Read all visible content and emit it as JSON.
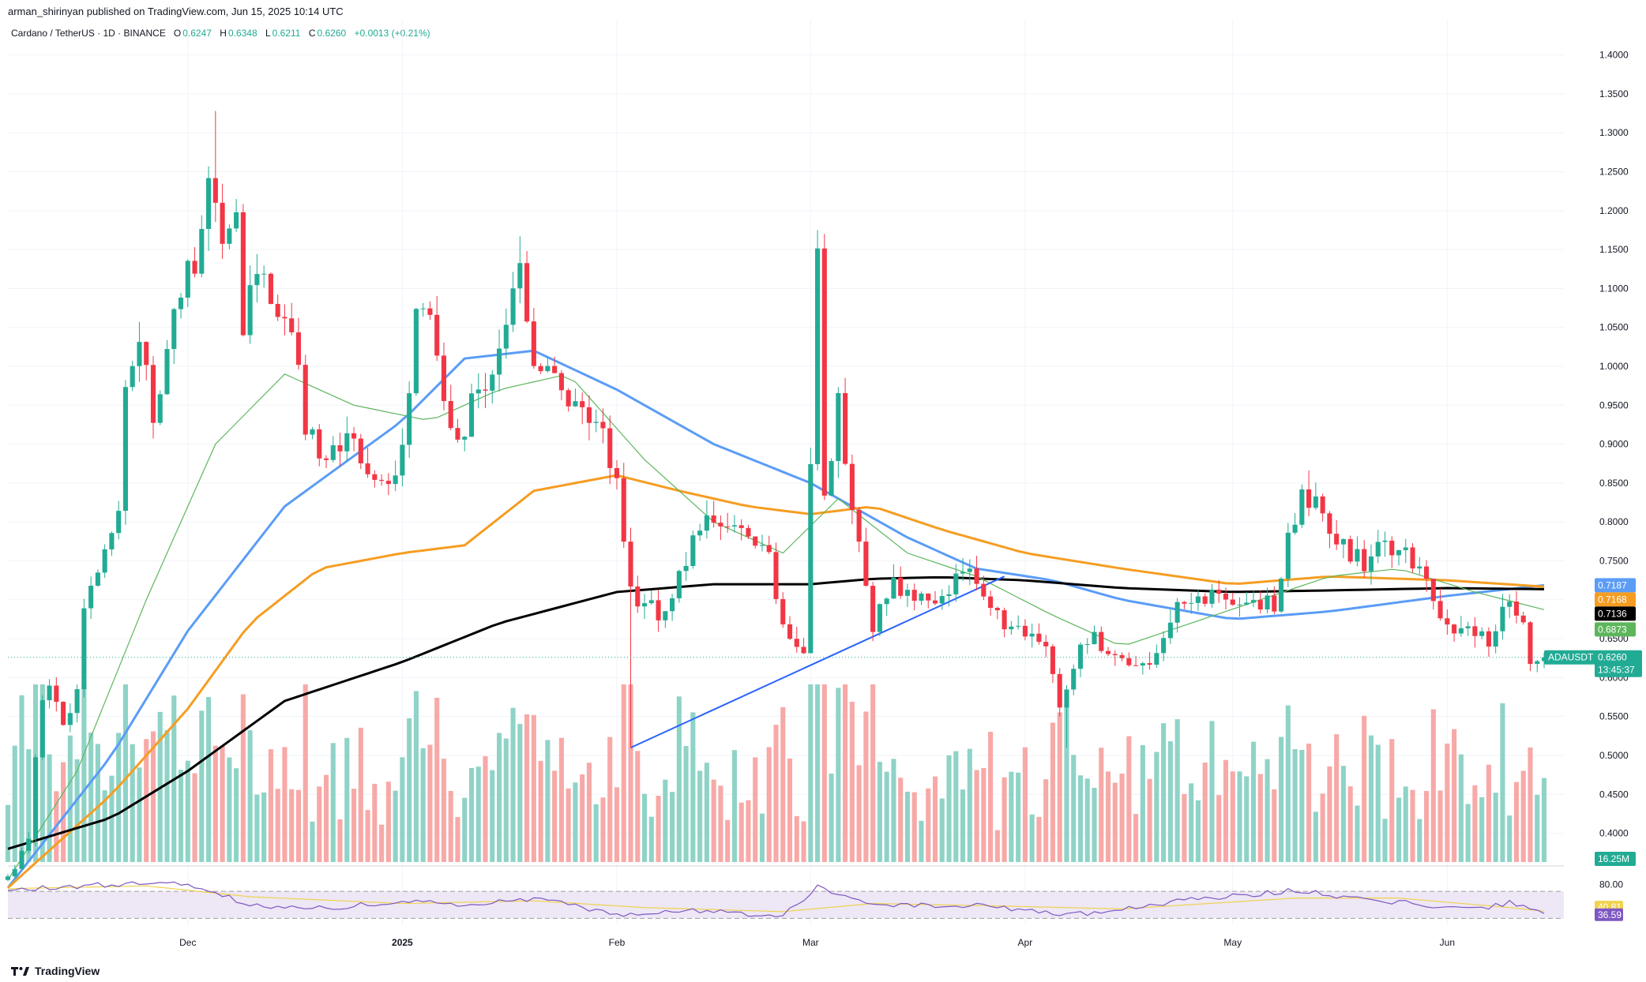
{
  "header": {
    "published": "arman_shirinyan published on TradingView.com, Jun 15, 2025 10:14 UTC",
    "symbol": "Cardano / TetherUS · 1D · BINANCE",
    "ohlc": {
      "o_label": "O",
      "o": "0.6247",
      "h_label": "H",
      "h": "0.6348",
      "l_label": "L",
      "l": "0.6211",
      "c_label": "C",
      "c": "0.6260",
      "change": "+0.0013 (+0.21%)"
    }
  },
  "brand": {
    "name": "TradingView"
  },
  "colors": {
    "up": "#22ab94",
    "down": "#f23645",
    "vol_up": "#8fd3c7",
    "vol_down": "#f7a9a7",
    "ma_fast": "#5b9cf6",
    "ma_mid": "#f59d22",
    "ma_slow": "#000000",
    "ma_thin": "#5db65c",
    "trendline": "#2962ff",
    "rsi": "#7e57c2",
    "rsi_ma": "#f0d24d",
    "rsi_band": "#ede7f6"
  },
  "chart_data": {
    "type": "candlestick",
    "title": "Cardano / TetherUS · 1D · BINANCE",
    "y_axis": {
      "range": [
        0.36,
        1.425
      ],
      "ticks": [
        "1.4000",
        "1.3500",
        "1.3000",
        "1.2500",
        "1.2000",
        "1.1500",
        "1.1000",
        "1.0500",
        "1.0000",
        "0.9500",
        "0.9000",
        "0.8500",
        "0.8000",
        "0.7500",
        "0.7000",
        "0.6500",
        "0.6000",
        "0.5500",
        "0.5000",
        "0.4500",
        "0.4000"
      ]
    },
    "x_axis": {
      "start": "2024-11-05",
      "end": "2025-06-15",
      "ticks": [
        {
          "label": "Dec",
          "date": "2024-12-01"
        },
        {
          "label": "2025",
          "date": "2025-01-01"
        },
        {
          "label": "Feb",
          "date": "2025-02-01"
        },
        {
          "label": "Mar",
          "date": "2025-03-01"
        },
        {
          "label": "Apr",
          "date": "2025-04-01"
        },
        {
          "label": "May",
          "date": "2025-05-01"
        },
        {
          "label": "Jun",
          "date": "2025-06-01"
        }
      ]
    },
    "close_path": [
      [
        "2024-11-05",
        0.34
      ],
      [
        "2024-11-08",
        0.4
      ],
      [
        "2024-11-10",
        0.58
      ],
      [
        "2024-11-11",
        0.59
      ],
      [
        "2024-11-13",
        0.55
      ],
      [
        "2024-11-15",
        0.58
      ],
      [
        "2024-11-16",
        0.68
      ],
      [
        "2024-11-19",
        0.76
      ],
      [
        "2024-11-21",
        0.8
      ],
      [
        "2024-11-22",
        0.97
      ],
      [
        "2024-11-24",
        1.05
      ],
      [
        "2024-11-26",
        0.94
      ],
      [
        "2024-11-28",
        1.02
      ],
      [
        "2024-11-30",
        1.1
      ],
      [
        "2024-12-02",
        1.14
      ],
      [
        "2024-12-03",
        1.2
      ],
      [
        "2024-12-04",
        1.23
      ],
      [
        "2024-12-06",
        1.18
      ],
      [
        "2024-12-08",
        1.22
      ],
      [
        "2024-12-09",
        1.05
      ],
      [
        "2024-12-11",
        1.13
      ],
      [
        "2024-12-13",
        1.09
      ],
      [
        "2024-12-16",
        1.05
      ],
      [
        "2024-12-18",
        0.93
      ],
      [
        "2024-12-20",
        0.88
      ],
      [
        "2024-12-22",
        0.9
      ],
      [
        "2024-12-25",
        0.92
      ],
      [
        "2024-12-27",
        0.86
      ],
      [
        "2024-12-29",
        0.85
      ],
      [
        "2024-12-31",
        0.85
      ],
      [
        "2025-01-02",
        0.97
      ],
      [
        "2025-01-03",
        1.06
      ],
      [
        "2025-01-05",
        1.08
      ],
      [
        "2025-01-07",
        0.96
      ],
      [
        "2025-01-09",
        0.9
      ],
      [
        "2025-01-12",
        0.98
      ],
      [
        "2025-01-14",
        0.98
      ],
      [
        "2025-01-16",
        1.06
      ],
      [
        "2025-01-18",
        1.12
      ],
      [
        "2025-01-20",
        1.02
      ],
      [
        "2025-01-23",
        0.98
      ],
      [
        "2025-01-26",
        0.95
      ],
      [
        "2025-01-29",
        0.94
      ],
      [
        "2025-02-01",
        0.85
      ],
      [
        "2025-02-02",
        0.77
      ],
      [
        "2025-02-03",
        0.71
      ],
      [
        "2025-02-05",
        0.7
      ],
      [
        "2025-02-08",
        0.68
      ],
      [
        "2025-02-10",
        0.73
      ],
      [
        "2025-02-13",
        0.79
      ],
      [
        "2025-02-16",
        0.8
      ],
      [
        "2025-02-19",
        0.78
      ],
      [
        "2025-02-23",
        0.76
      ],
      [
        "2025-02-25",
        0.67
      ],
      [
        "2025-02-27",
        0.64
      ],
      [
        "2025-02-28",
        0.63
      ],
      [
        "2025-03-02",
        1.13
      ],
      [
        "2025-03-03",
        0.84
      ],
      [
        "2025-03-05",
        0.95
      ],
      [
        "2025-03-07",
        0.83
      ],
      [
        "2025-03-09",
        0.71
      ],
      [
        "2025-03-10",
        0.67
      ],
      [
        "2025-03-13",
        0.72
      ],
      [
        "2025-03-16",
        0.71
      ],
      [
        "2025-03-19",
        0.7
      ],
      [
        "2025-03-22",
        0.72
      ],
      [
        "2025-03-25",
        0.73
      ],
      [
        "2025-03-28",
        0.69
      ],
      [
        "2025-03-30",
        0.66
      ],
      [
        "2025-04-02",
        0.65
      ],
      [
        "2025-04-04",
        0.63
      ],
      [
        "2025-04-06",
        0.56
      ],
      [
        "2025-04-07",
        0.58
      ],
      [
        "2025-04-09",
        0.63
      ],
      [
        "2025-04-11",
        0.65
      ],
      [
        "2025-04-13",
        0.63
      ],
      [
        "2025-04-16",
        0.62
      ],
      [
        "2025-04-19",
        0.62
      ],
      [
        "2025-04-21",
        0.64
      ],
      [
        "2025-04-23",
        0.7
      ],
      [
        "2025-04-25",
        0.71
      ],
      [
        "2025-04-28",
        0.7
      ],
      [
        "2025-05-01",
        0.69
      ],
      [
        "2025-05-04",
        0.7
      ],
      [
        "2025-05-07",
        0.69
      ],
      [
        "2025-05-09",
        0.78
      ],
      [
        "2025-05-11",
        0.83
      ],
      [
        "2025-05-13",
        0.82
      ],
      [
        "2025-05-15",
        0.8
      ],
      [
        "2025-05-18",
        0.76
      ],
      [
        "2025-05-20",
        0.75
      ],
      [
        "2025-05-23",
        0.77
      ],
      [
        "2025-05-26",
        0.76
      ],
      [
        "2025-05-29",
        0.73
      ],
      [
        "2025-05-31",
        0.68
      ],
      [
        "2025-06-02",
        0.67
      ],
      [
        "2025-06-05",
        0.66
      ],
      [
        "2025-06-07",
        0.64
      ],
      [
        "2025-06-10",
        0.7
      ],
      [
        "2025-06-12",
        0.66
      ],
      [
        "2025-06-13",
        0.63
      ],
      [
        "2025-06-15",
        0.626
      ]
    ],
    "spikes": [
      {
        "date": "2024-12-05",
        "high": 1.328
      },
      {
        "date": "2025-01-18",
        "high": 1.167
      },
      {
        "date": "2025-02-03",
        "low": 0.51
      },
      {
        "date": "2025-03-02",
        "high": 1.175
      },
      {
        "date": "2025-04-07",
        "low": 0.51
      },
      {
        "date": "2025-05-12",
        "high": 0.866
      }
    ],
    "moving_averages": [
      {
        "color_key": "ma_fast",
        "last_value": "0.7187",
        "points": [
          [
            "2024-11-05",
            0.33
          ],
          [
            "2024-11-20",
            0.5
          ],
          [
            "2024-12-01",
            0.66
          ],
          [
            "2024-12-15",
            0.82
          ],
          [
            "2025-01-01",
            0.93
          ],
          [
            "2025-01-10",
            1.01
          ],
          [
            "2025-01-20",
            1.02
          ],
          [
            "2025-02-01",
            0.97
          ],
          [
            "2025-02-15",
            0.9
          ],
          [
            "2025-03-01",
            0.85
          ],
          [
            "2025-03-15",
            0.78
          ],
          [
            "2025-03-25",
            0.74
          ],
          [
            "2025-04-05",
            0.725
          ],
          [
            "2025-04-15",
            0.7
          ],
          [
            "2025-05-01",
            0.675
          ],
          [
            "2025-05-15",
            0.685
          ],
          [
            "2025-06-01",
            0.705
          ],
          [
            "2025-06-15",
            0.7187
          ]
        ]
      },
      {
        "color_key": "ma_mid",
        "last_value": "0.7168",
        "points": [
          [
            "2024-11-05",
            0.33
          ],
          [
            "2024-11-20",
            0.45
          ],
          [
            "2024-12-01",
            0.56
          ],
          [
            "2024-12-10",
            0.67
          ],
          [
            "2024-12-20",
            0.74
          ],
          [
            "2025-01-01",
            0.76
          ],
          [
            "2025-01-10",
            0.77
          ],
          [
            "2025-01-20",
            0.84
          ],
          [
            "2025-02-01",
            0.86
          ],
          [
            "2025-02-10",
            0.84
          ],
          [
            "2025-02-20",
            0.82
          ],
          [
            "2025-03-01",
            0.81
          ],
          [
            "2025-03-10",
            0.82
          ],
          [
            "2025-03-20",
            0.79
          ],
          [
            "2025-04-01",
            0.76
          ],
          [
            "2025-04-15",
            0.74
          ],
          [
            "2025-05-01",
            0.72
          ],
          [
            "2025-05-15",
            0.73
          ],
          [
            "2025-06-01",
            0.725
          ],
          [
            "2025-06-15",
            0.7168
          ]
        ]
      },
      {
        "color_key": "ma_slow",
        "last_value": "0.7136",
        "points": [
          [
            "2024-11-05",
            0.38
          ],
          [
            "2024-11-20",
            0.42
          ],
          [
            "2024-12-01",
            0.48
          ],
          [
            "2024-12-15",
            0.57
          ],
          [
            "2025-01-01",
            0.62
          ],
          [
            "2025-01-15",
            0.67
          ],
          [
            "2025-02-01",
            0.71
          ],
          [
            "2025-02-15",
            0.72
          ],
          [
            "2025-03-01",
            0.72
          ],
          [
            "2025-03-10",
            0.727
          ],
          [
            "2025-03-20",
            0.729
          ],
          [
            "2025-04-01",
            0.725
          ],
          [
            "2025-04-15",
            0.715
          ],
          [
            "2025-05-01",
            0.71
          ],
          [
            "2025-05-15",
            0.712
          ],
          [
            "2025-06-01",
            0.715
          ],
          [
            "2025-06-15",
            0.7136
          ]
        ]
      },
      {
        "color_key": "ma_thin",
        "last_value": "0.6873",
        "points": [
          [
            "2024-11-05",
            0.34
          ],
          [
            "2024-11-15",
            0.48
          ],
          [
            "2024-11-25",
            0.7
          ],
          [
            "2024-12-05",
            0.9
          ],
          [
            "2024-12-15",
            0.99
          ],
          [
            "2024-12-25",
            0.95
          ],
          [
            "2025-01-05",
            0.93
          ],
          [
            "2025-01-15",
            0.97
          ],
          [
            "2025-01-25",
            0.99
          ],
          [
            "2025-02-05",
            0.88
          ],
          [
            "2025-02-15",
            0.8
          ],
          [
            "2025-02-25",
            0.76
          ],
          [
            "2025-03-05",
            0.83
          ],
          [
            "2025-03-15",
            0.76
          ],
          [
            "2025-03-25",
            0.73
          ],
          [
            "2025-04-05",
            0.68
          ],
          [
            "2025-04-15",
            0.64
          ],
          [
            "2025-04-25",
            0.67
          ],
          [
            "2025-05-05",
            0.7
          ],
          [
            "2025-05-15",
            0.73
          ],
          [
            "2025-05-25",
            0.74
          ],
          [
            "2025-06-05",
            0.71
          ],
          [
            "2025-06-15",
            0.6873
          ]
        ]
      }
    ],
    "trendline": {
      "from": [
        "2025-02-03",
        0.51
      ],
      "to": [
        "2025-03-29",
        0.73
      ]
    },
    "current_price_tag": {
      "symbol": "ADAUSDT",
      "price": "0.6260",
      "countdown": "13:45:37",
      "value": 0.626
    },
    "volume": {
      "last_label": "16.25M"
    },
    "rsi": {
      "ticks": [
        "80.00"
      ],
      "band": [
        30,
        70
      ],
      "rsi_value": "36.59",
      "rsi_ma_value": "40.81",
      "rsi_points": [
        [
          "2024-11-05",
          72
        ],
        [
          "2024-11-20",
          80
        ],
        [
          "2024-12-01",
          82
        ],
        [
          "2024-12-10",
          50
        ],
        [
          "2024-12-20",
          45
        ],
        [
          "2025-01-01",
          55
        ],
        [
          "2025-01-10",
          50
        ],
        [
          "2025-01-20",
          60
        ],
        [
          "2025-02-01",
          35
        ],
        [
          "2025-02-10",
          42
        ],
        [
          "2025-02-25",
          34
        ],
        [
          "2025-03-02",
          76
        ],
        [
          "2025-03-10",
          48
        ],
        [
          "2025-03-25",
          50
        ],
        [
          "2025-04-07",
          34
        ],
        [
          "2025-04-20",
          52
        ],
        [
          "2025-05-10",
          72
        ],
        [
          "2025-05-20",
          58
        ],
        [
          "2025-06-05",
          44
        ],
        [
          "2025-06-10",
          53
        ],
        [
          "2025-06-15",
          36.59
        ]
      ],
      "ma_points": [
        [
          "2024-11-05",
          74
        ],
        [
          "2024-11-25",
          78
        ],
        [
          "2024-12-10",
          62
        ],
        [
          "2025-01-01",
          52
        ],
        [
          "2025-01-20",
          56
        ],
        [
          "2025-02-05",
          46
        ],
        [
          "2025-02-25",
          40
        ],
        [
          "2025-03-10",
          52
        ],
        [
          "2025-03-30",
          48
        ],
        [
          "2025-04-15",
          44
        ],
        [
          "2025-05-10",
          60
        ],
        [
          "2025-05-25",
          60
        ],
        [
          "2025-06-10",
          46
        ],
        [
          "2025-06-15",
          40.81
        ]
      ]
    }
  }
}
